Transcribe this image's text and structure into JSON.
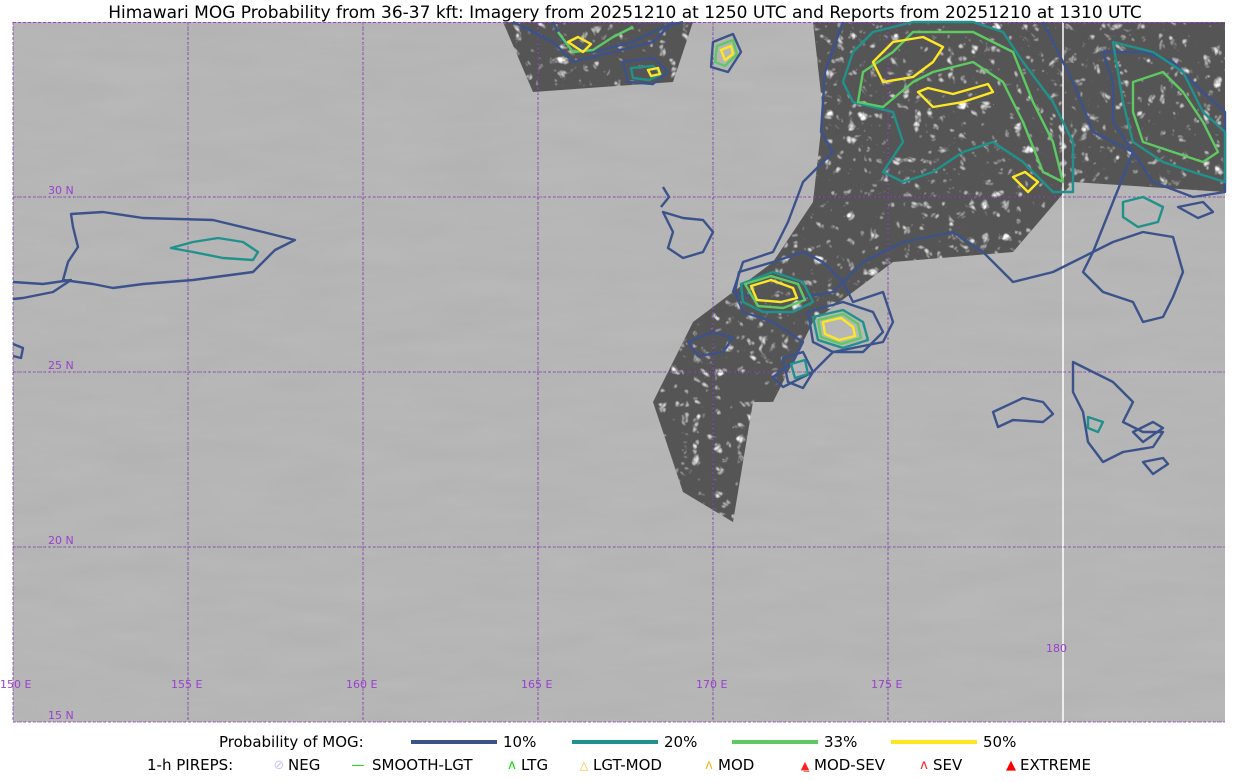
{
  "title": "Himawari MOG Probability from 36-37 kft: Imagery from 20251210 at 1250 UTC and Reports from 20251210 at 1310 UTC",
  "map": {
    "longitude_labels": [
      "150 E",
      "155 E",
      "160 E",
      "165 E",
      "170 E",
      "175 E",
      "180"
    ],
    "latitude_labels": [
      "30 N",
      "25 N",
      "20 N",
      "15 N"
    ],
    "grid_color": "#9a3fd0",
    "extent": {
      "lon": [
        150,
        184.6
      ],
      "lat": [
        15,
        35
      ]
    }
  },
  "legend": {
    "probability_label": "Probability of MOG:",
    "levels": [
      {
        "label": "10%",
        "color": "#3b528b"
      },
      {
        "label": "20%",
        "color": "#21918c"
      },
      {
        "label": "33%",
        "color": "#5ec962"
      },
      {
        "label": "50%",
        "color": "#fde725"
      }
    ],
    "pireps_label": "1-h PIREPS:",
    "pireps": [
      {
        "label": "NEG",
        "icon": "neg-circle-icon",
        "color": "#c8c8f0"
      },
      {
        "label": "SMOOTH-LGT",
        "icon": "line-icon",
        "color": "#00e000"
      },
      {
        "label": "LTG",
        "icon": "caret-icon",
        "color": "#00e000"
      },
      {
        "label": "LGT-MOD",
        "icon": "caret-bar-icon",
        "color": "#ffb020"
      },
      {
        "label": "MOD",
        "icon": "caret-icon",
        "color": "#ffb020"
      },
      {
        "label": "MOD-SEV",
        "icon": "double-caret-bar-icon",
        "color": "#ff2020"
      },
      {
        "label": "SEV",
        "icon": "double-caret-icon",
        "color": "#ff2020"
      },
      {
        "label": "EXTREME",
        "icon": "filled-triangle-icon",
        "color": "#ff0000"
      }
    ]
  }
}
